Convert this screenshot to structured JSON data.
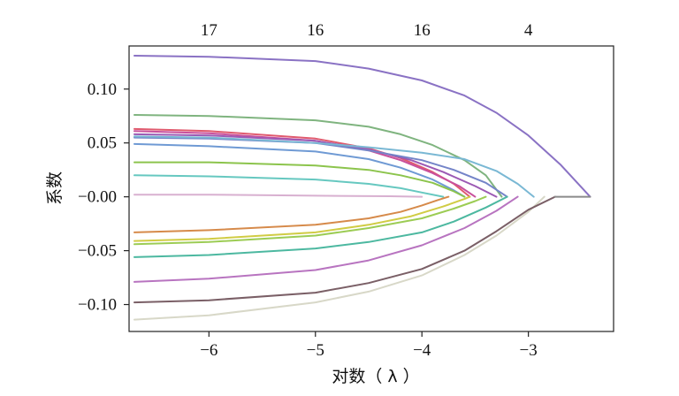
{
  "chart_data": {
    "type": "line",
    "title": "",
    "xlabel": "对数（ λ ）",
    "ylabel": "系数",
    "xlim": [
      -6.75,
      -2.2
    ],
    "ylim": [
      -0.125,
      0.14
    ],
    "x_ticks": [
      -6,
      -5,
      -4,
      -3
    ],
    "x_tick_labels": [
      "−6",
      "−5",
      "−4",
      "−3"
    ],
    "y_ticks": [
      0.1,
      0.05,
      0.0,
      -0.05,
      -0.1
    ],
    "y_tick_labels": [
      "0.10",
      "0.05",
      "−0.00",
      "−0.05",
      "−0.10"
    ],
    "top_ticks": [
      -6,
      -5,
      -4,
      -3
    ],
    "top_tick_labels": [
      "17",
      "16",
      "16",
      "4"
    ],
    "grid": false,
    "legend": "none",
    "series": [
      {
        "color": "#8a72c4",
        "points": [
          [
            -6.7,
            0.131
          ],
          [
            -6.0,
            0.13
          ],
          [
            -5.0,
            0.126
          ],
          [
            -4.5,
            0.119
          ],
          [
            -4.0,
            0.108
          ],
          [
            -3.6,
            0.094
          ],
          [
            -3.3,
            0.078
          ],
          [
            -3.0,
            0.057
          ],
          [
            -2.7,
            0.03
          ],
          [
            -2.55,
            0.014
          ],
          [
            -2.42,
            0.0
          ]
        ]
      },
      {
        "color": "#7fb47f",
        "points": [
          [
            -6.7,
            0.076
          ],
          [
            -6.0,
            0.075
          ],
          [
            -5.0,
            0.071
          ],
          [
            -4.5,
            0.065
          ],
          [
            -4.2,
            0.058
          ],
          [
            -3.9,
            0.048
          ],
          [
            -3.6,
            0.034
          ],
          [
            -3.4,
            0.02
          ],
          [
            -3.25,
            0.0
          ]
        ]
      },
      {
        "color": "#e05a6e",
        "points": [
          [
            -6.7,
            0.063
          ],
          [
            -6.0,
            0.061
          ],
          [
            -5.0,
            0.054
          ],
          [
            -4.5,
            0.045
          ],
          [
            -4.2,
            0.036
          ],
          [
            -3.9,
            0.023
          ],
          [
            -3.7,
            0.012
          ],
          [
            -3.55,
            0.0
          ]
        ]
      },
      {
        "color": "#c8509c",
        "points": [
          [
            -6.7,
            0.061
          ],
          [
            -6.0,
            0.059
          ],
          [
            -5.0,
            0.052
          ],
          [
            -4.5,
            0.043
          ],
          [
            -4.2,
            0.034
          ],
          [
            -3.9,
            0.022
          ],
          [
            -3.65,
            0.01
          ],
          [
            -3.5,
            0.0
          ]
        ]
      },
      {
        "color": "#9c5ab4",
        "points": [
          [
            -6.7,
            0.058
          ],
          [
            -6.0,
            0.057
          ],
          [
            -5.0,
            0.052
          ],
          [
            -4.5,
            0.044
          ],
          [
            -4.1,
            0.034
          ],
          [
            -3.8,
            0.023
          ],
          [
            -3.5,
            0.01
          ],
          [
            -3.3,
            0.0
          ]
        ]
      },
      {
        "color": "#7484c8",
        "points": [
          [
            -6.7,
            0.055
          ],
          [
            -6.0,
            0.054
          ],
          [
            -5.0,
            0.05
          ],
          [
            -4.5,
            0.043
          ],
          [
            -4.0,
            0.034
          ],
          [
            -3.7,
            0.025
          ],
          [
            -3.4,
            0.013
          ],
          [
            -3.2,
            0.0
          ]
        ]
      },
      {
        "color": "#6f9ad4",
        "points": [
          [
            -6.7,
            0.049
          ],
          [
            -6.0,
            0.047
          ],
          [
            -5.0,
            0.042
          ],
          [
            -4.5,
            0.035
          ],
          [
            -4.2,
            0.027
          ],
          [
            -3.9,
            0.016
          ],
          [
            -3.7,
            0.006
          ],
          [
            -3.6,
            0.0
          ]
        ]
      },
      {
        "color": "#7ab8d4",
        "points": [
          [
            -6.7,
            0.056
          ],
          [
            -6.0,
            0.055
          ],
          [
            -5.0,
            0.05
          ],
          [
            -4.5,
            0.046
          ],
          [
            -4.0,
            0.041
          ],
          [
            -3.6,
            0.035
          ],
          [
            -3.3,
            0.024
          ],
          [
            -3.1,
            0.012
          ],
          [
            -2.95,
            0.0
          ]
        ]
      },
      {
        "color": "#8cc44c",
        "points": [
          [
            -6.7,
            0.032
          ],
          [
            -6.0,
            0.032
          ],
          [
            -5.0,
            0.029
          ],
          [
            -4.5,
            0.025
          ],
          [
            -4.2,
            0.02
          ],
          [
            -3.9,
            0.013
          ],
          [
            -3.7,
            0.005
          ],
          [
            -3.6,
            0.0
          ]
        ]
      },
      {
        "color": "#66c8c0",
        "points": [
          [
            -6.7,
            0.02
          ],
          [
            -6.0,
            0.019
          ],
          [
            -5.0,
            0.016
          ],
          [
            -4.5,
            0.012
          ],
          [
            -4.2,
            0.008
          ],
          [
            -4.0,
            0.004
          ],
          [
            -3.8,
            0.0
          ]
        ]
      },
      {
        "color": "#d8b0d0",
        "points": [
          [
            -6.7,
            0.002
          ],
          [
            -6.0,
            0.002
          ],
          [
            -5.0,
            0.001
          ],
          [
            -4.3,
            0.0005
          ],
          [
            -4.0,
            0.0
          ]
        ]
      },
      {
        "color": "#d68a4a",
        "points": [
          [
            -6.7,
            -0.033
          ],
          [
            -6.0,
            -0.031
          ],
          [
            -5.0,
            -0.026
          ],
          [
            -4.5,
            -0.02
          ],
          [
            -4.2,
            -0.014
          ],
          [
            -4.0,
            -0.008
          ],
          [
            -3.85,
            -0.003
          ],
          [
            -3.75,
            0.0
          ]
        ]
      },
      {
        "color": "#d0cc44",
        "points": [
          [
            -6.7,
            -0.041
          ],
          [
            -6.0,
            -0.039
          ],
          [
            -5.0,
            -0.033
          ],
          [
            -4.5,
            -0.026
          ],
          [
            -4.1,
            -0.018
          ],
          [
            -3.8,
            -0.009
          ],
          [
            -3.6,
            -0.002
          ],
          [
            -3.55,
            0.0
          ]
        ]
      },
      {
        "color": "#9ccc54",
        "points": [
          [
            -6.7,
            -0.044
          ],
          [
            -6.0,
            -0.042
          ],
          [
            -5.0,
            -0.036
          ],
          [
            -4.5,
            -0.029
          ],
          [
            -4.0,
            -0.02
          ],
          [
            -3.7,
            -0.011
          ],
          [
            -3.5,
            -0.004
          ],
          [
            -3.4,
            0.0
          ]
        ]
      },
      {
        "color": "#4cb8a0",
        "points": [
          [
            -6.7,
            -0.056
          ],
          [
            -6.0,
            -0.054
          ],
          [
            -5.0,
            -0.048
          ],
          [
            -4.5,
            -0.042
          ],
          [
            -4.0,
            -0.033
          ],
          [
            -3.7,
            -0.023
          ],
          [
            -3.4,
            -0.01
          ],
          [
            -3.2,
            0.0
          ]
        ]
      },
      {
        "color": "#b874c0",
        "points": [
          [
            -6.7,
            -0.079
          ],
          [
            -6.0,
            -0.076
          ],
          [
            -5.0,
            -0.068
          ],
          [
            -4.5,
            -0.059
          ],
          [
            -4.0,
            -0.045
          ],
          [
            -3.6,
            -0.029
          ],
          [
            -3.3,
            -0.013
          ],
          [
            -3.1,
            0.0
          ]
        ]
      },
      {
        "color": "#d8d8c8",
        "points": [
          [
            -6.7,
            -0.114
          ],
          [
            -6.0,
            -0.11
          ],
          [
            -5.0,
            -0.098
          ],
          [
            -4.5,
            -0.088
          ],
          [
            -4.0,
            -0.073
          ],
          [
            -3.6,
            -0.054
          ],
          [
            -3.3,
            -0.036
          ],
          [
            -3.0,
            -0.014
          ],
          [
            -2.85,
            0.0
          ]
        ]
      },
      {
        "color": "#7a5f66",
        "points": [
          [
            -6.7,
            -0.098
          ],
          [
            -6.0,
            -0.096
          ],
          [
            -5.0,
            -0.089
          ],
          [
            -4.5,
            -0.08
          ],
          [
            -4.0,
            -0.067
          ],
          [
            -3.6,
            -0.05
          ],
          [
            -3.3,
            -0.032
          ],
          [
            -3.0,
            -0.012
          ],
          [
            -2.75,
            0.0
          ]
        ]
      },
      {
        "color": "#8a8a8a",
        "points": [
          [
            -2.75,
            0.0
          ],
          [
            -2.42,
            0.0
          ]
        ]
      }
    ]
  }
}
